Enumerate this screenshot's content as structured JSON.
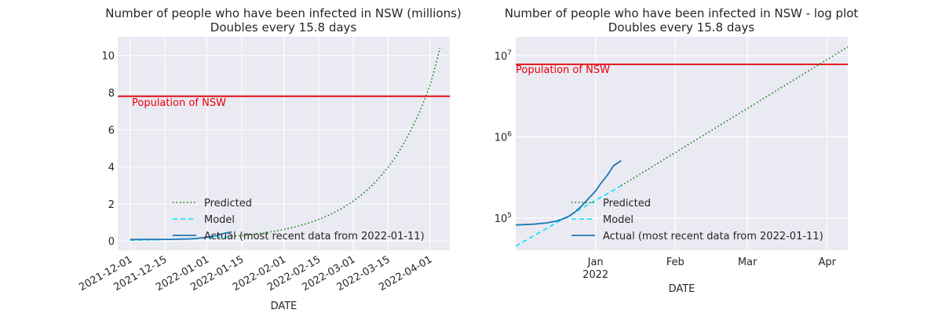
{
  "chart_data": [
    {
      "type": "line",
      "title": "Number of people who have been infected in NSW (millions)",
      "subtitle": "Doubles every 15.8 days",
      "xlabel": "DATE",
      "ylabel": "",
      "x_scale": "date",
      "xlim": [
        "2021-11-26",
        "2022-04-09"
      ],
      "ylim": [
        -0.5,
        11.0
      ],
      "x_ticks": [
        "2021-12-01",
        "2021-12-15",
        "2022-01-01",
        "2022-01-15",
        "2022-02-01",
        "2022-02-15",
        "2022-03-01",
        "2022-03-15",
        "2022-04-01"
      ],
      "y_ticks": [
        0,
        2,
        4,
        6,
        8,
        10
      ],
      "grid": true,
      "legend_placement": "lower-center",
      "annotations": [
        {
          "text": "Population of NSW",
          "color": "#e8000b"
        }
      ],
      "reference_line": {
        "y": 7.8,
        "color": "#e8000b"
      },
      "series": [
        {
          "name": "Predicted",
          "style": "dotted",
          "color": "#008000",
          "x": [
            "2022-01-11",
            "2022-01-25",
            "2022-02-08",
            "2022-02-22",
            "2022-03-01",
            "2022-03-08",
            "2022-03-15",
            "2022-03-22",
            "2022-03-29",
            "2022-04-01",
            "2022-04-05"
          ],
          "y": [
            0.25,
            0.46,
            0.85,
            1.58,
            2.15,
            2.92,
            3.96,
            5.4,
            7.35,
            8.4,
            10.4
          ]
        },
        {
          "name": "Model",
          "style": "dashed",
          "color": "#00e5ff",
          "x": [
            "2021-12-01",
            "2021-12-15",
            "2021-12-29",
            "2022-01-11"
          ],
          "y": [
            0.045,
            0.083,
            0.153,
            0.25
          ]
        },
        {
          "name": "Actual (most recent data from 2022-01-11)",
          "style": "solid",
          "color": "#1f77b4",
          "x": [
            "2021-12-01",
            "2021-12-10",
            "2021-12-18",
            "2021-12-26",
            "2022-01-01",
            "2022-01-05",
            "2022-01-08",
            "2022-01-11"
          ],
          "y": [
            0.08,
            0.083,
            0.09,
            0.12,
            0.21,
            0.3,
            0.42,
            0.49
          ]
        }
      ]
    },
    {
      "type": "line",
      "title": "Number of people who have been infected in NSW - log plot",
      "subtitle": "Doubles every 15.8 days",
      "xlabel": "DATE",
      "ylabel": "",
      "x_scale": "date",
      "y_scale": "log",
      "xlim": [
        "2021-12-01",
        "2022-04-09"
      ],
      "ylim": [
        40000,
        17000000
      ],
      "x_ticks": [
        {
          "date": "2022-01-01",
          "label": "Jan",
          "sublabel": "2022"
        },
        {
          "date": "2022-02-01",
          "label": "Feb"
        },
        {
          "date": "2022-03-01",
          "label": "Mar"
        },
        {
          "date": "2022-04-01",
          "label": "Apr"
        }
      ],
      "y_ticks": [
        {
          "value": 100000,
          "base": "10",
          "exp": "5"
        },
        {
          "value": 1000000,
          "base": "10",
          "exp": "6"
        },
        {
          "value": 10000000,
          "base": "10",
          "exp": "7"
        }
      ],
      "grid": true,
      "legend_placement": "lower-right",
      "annotations": [
        {
          "text": "Population of NSW",
          "color": "#e8000b"
        }
      ],
      "reference_line": {
        "y": 7800000,
        "color": "#e8000b"
      },
      "series": [
        {
          "name": "Predicted",
          "style": "dotted",
          "color": "#008000",
          "x": [
            "2022-01-11",
            "2022-04-09"
          ],
          "y": [
            250000,
            12800000
          ]
        },
        {
          "name": "Model",
          "style": "dashed",
          "color": "#00e5ff",
          "x": [
            "2021-12-01",
            "2022-01-11"
          ],
          "y": [
            45000,
            250000
          ]
        },
        {
          "name": "Actual (most recent data from 2022-01-11)",
          "style": "solid",
          "color": "#1f77b4",
          "x": [
            "2021-12-01",
            "2021-12-08",
            "2021-12-13",
            "2021-12-17",
            "2021-12-21",
            "2021-12-24",
            "2021-12-27",
            "2021-12-29",
            "2022-01-01",
            "2022-01-03",
            "2022-01-06",
            "2022-01-08",
            "2022-01-11"
          ],
          "y": [
            82000,
            84000,
            87000,
            92000,
            102000,
            118000,
            145000,
            170000,
            215000,
            265000,
            350000,
            440000,
            510000
          ]
        }
      ]
    }
  ]
}
